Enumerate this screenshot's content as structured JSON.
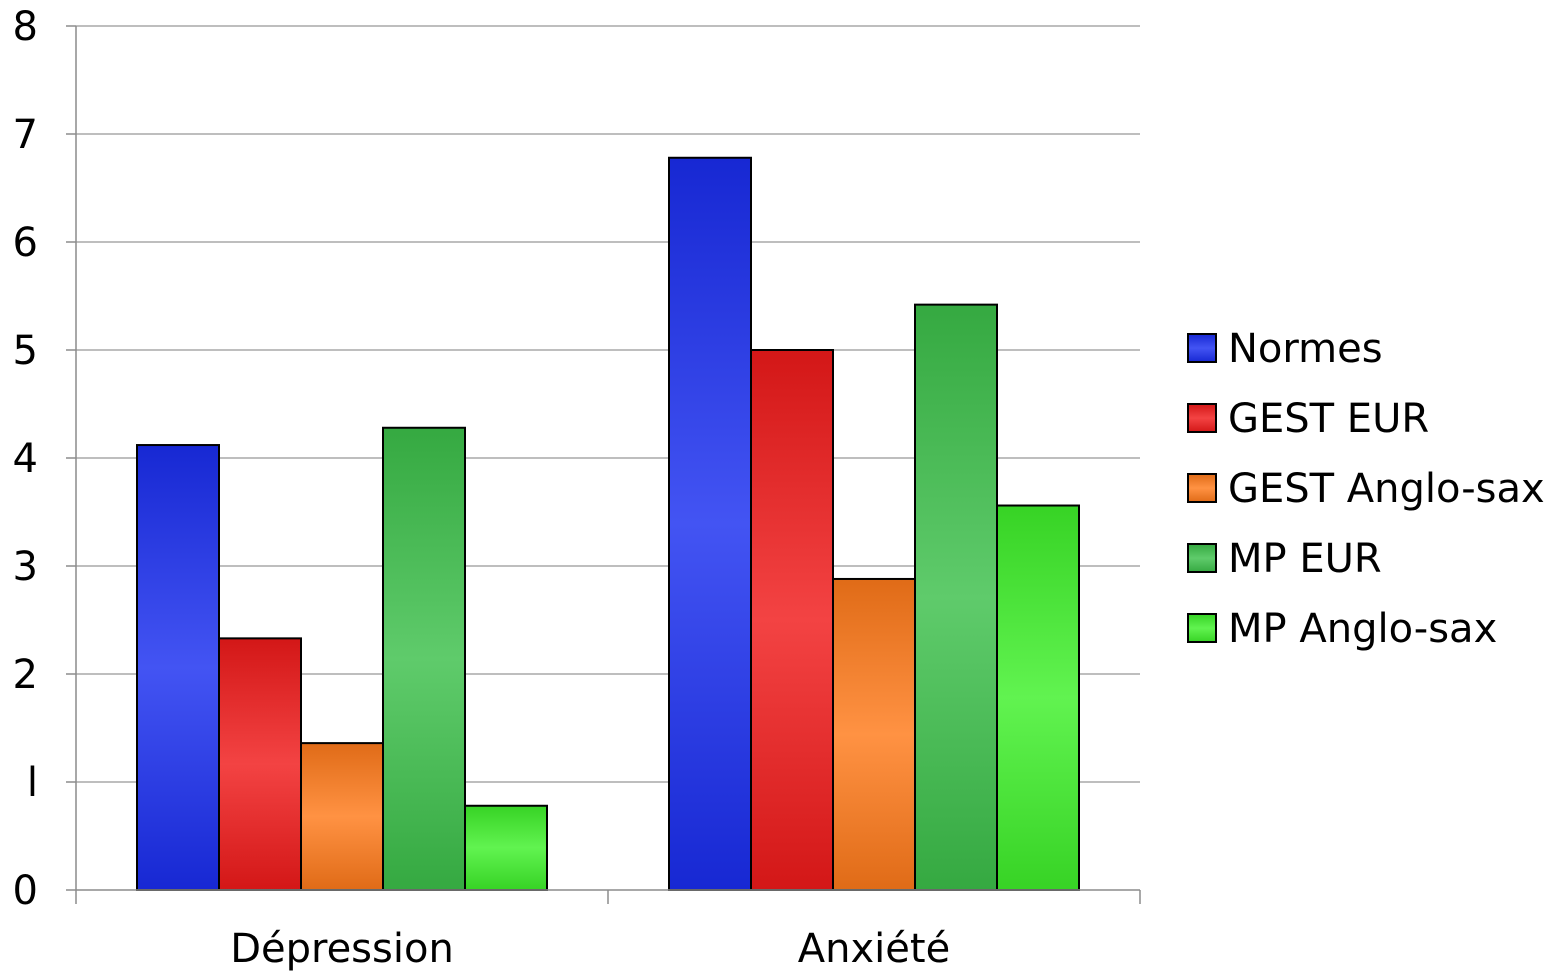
{
  "chart_data": {
    "type": "bar",
    "title": "",
    "xlabel": "",
    "ylabel": "",
    "categories": [
      "Dépression",
      "Anxiété"
    ],
    "ylim": [
      0,
      8
    ],
    "yticks": [
      "0",
      "l",
      "2",
      "3",
      "4",
      "5",
      "6",
      "7",
      "8"
    ],
    "grid": true,
    "legend_position": "right",
    "series": [
      {
        "name": "Normes",
        "values": [
          4.12,
          6.78
        ],
        "color": "#1a2ef0"
      },
      {
        "name": "GEST EUR",
        "values": [
          2.33,
          5.0
        ],
        "color": "#f01a1a"
      },
      {
        "name": "GEST Anglo-sax",
        "values": [
          1.36,
          2.88
        ],
        "color": "#ff7a1a"
      },
      {
        "name": "MP EUR",
        "values": [
          4.28,
          5.42
        ],
        "color": "#3cc04a"
      },
      {
        "name": "MP Anglo-sax",
        "values": [
          0.78,
          3.56
        ],
        "color": "#3ef02a"
      }
    ]
  }
}
